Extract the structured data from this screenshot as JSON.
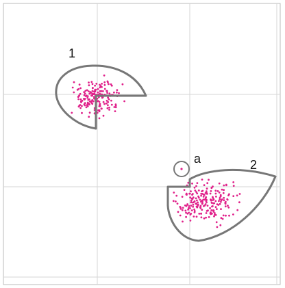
{
  "clusters": [
    {
      "label": "1"
    },
    {
      "label": "2"
    }
  ],
  "point_label": "a"
}
